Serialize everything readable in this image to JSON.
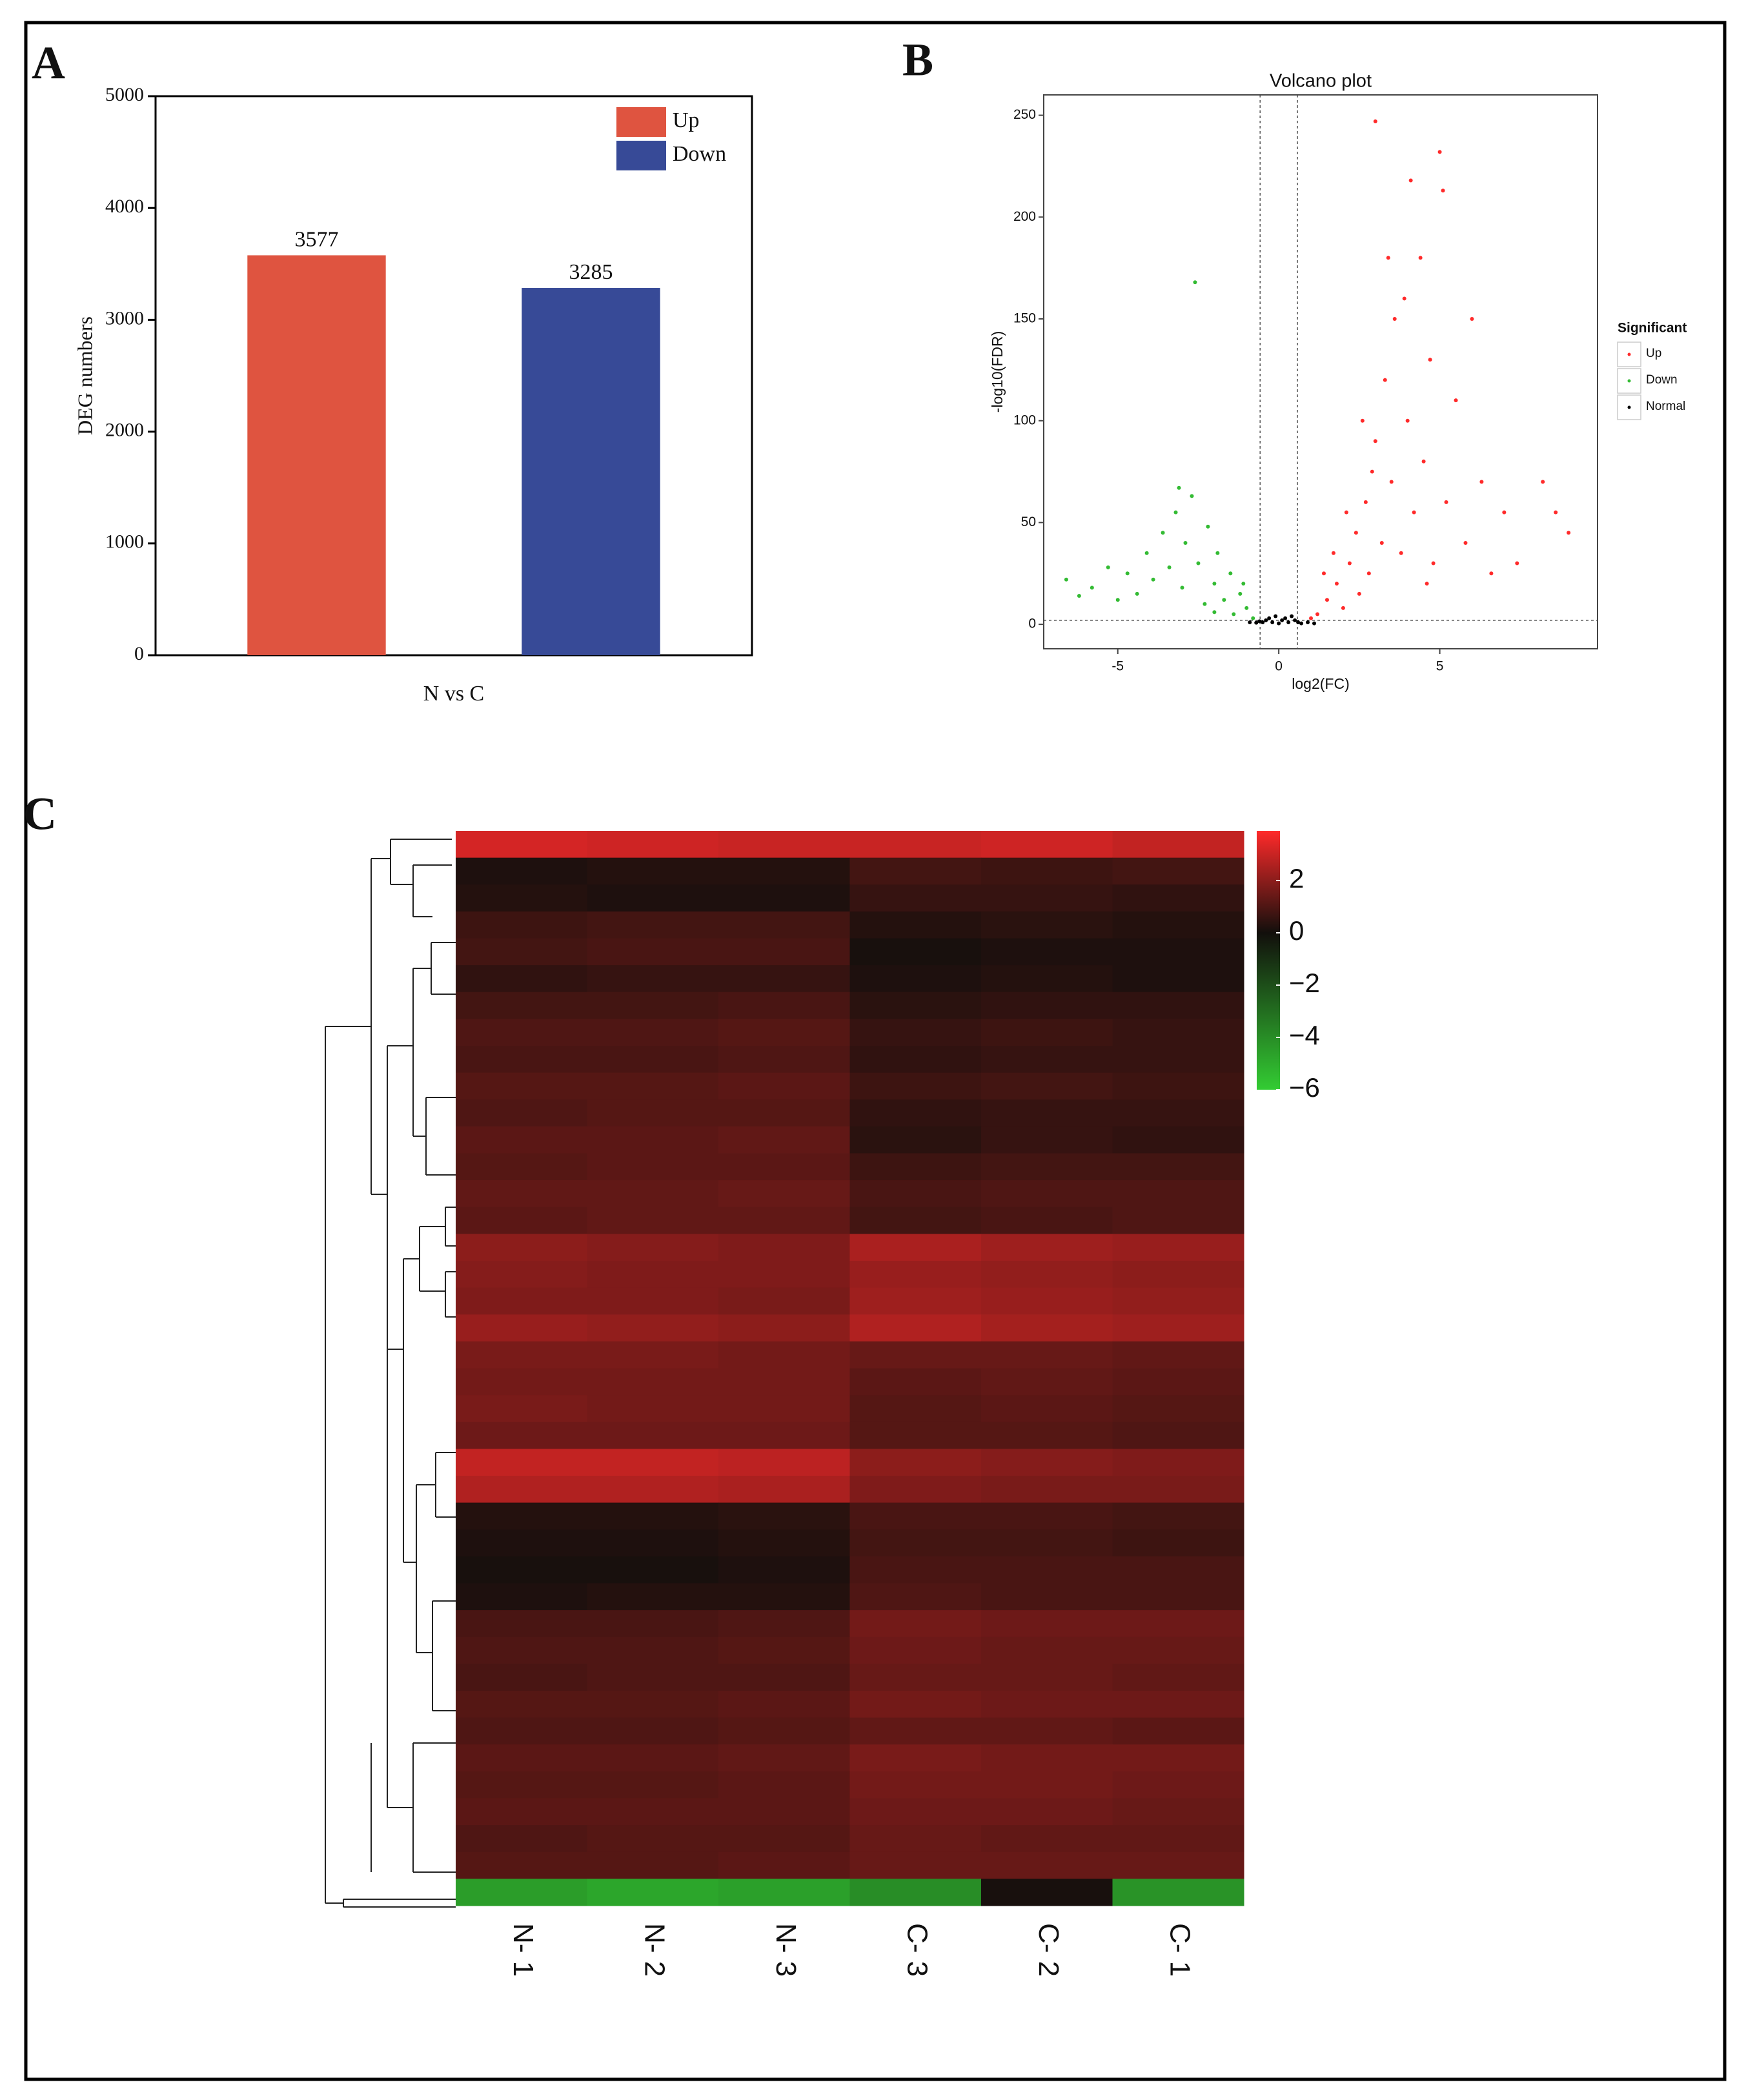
{
  "chart_data": [
    {
      "type": "bar",
      "panel": "A",
      "ylabel": "DEG numbers",
      "categories": [
        "N vs C"
      ],
      "series": [
        {
          "name": "Up",
          "color": "#df5440",
          "values": [
            3577
          ]
        },
        {
          "name": "Down",
          "color": "#374a97",
          "values": [
            3285
          ]
        }
      ],
      "ylim": [
        0,
        5000
      ],
      "yticks": [
        0,
        1000,
        2000,
        3000,
        4000,
        5000
      ],
      "legend": "upper right"
    },
    {
      "type": "scatter",
      "panel": "B",
      "title": "Volcano plot",
      "xlabel": "log2(FC)",
      "ylabel": "-log10(FDR)",
      "legend_title": "Significant",
      "legend": "right",
      "series": [
        {
          "name": "Up",
          "color": "#ff2a2a",
          "x": [
            1.2,
            1.5,
            1.8,
            2.0,
            2.2,
            2.4,
            2.5,
            2.7,
            2.8,
            3.0,
            3.0,
            3.2,
            3.3,
            3.5,
            3.6,
            3.8,
            4.0,
            4.1,
            4.2,
            4.4,
            4.5,
            4.7,
            4.8,
            5.0,
            5.1,
            5.2,
            5.5,
            5.8,
            6.0,
            6.3,
            6.6,
            7.0,
            7.4,
            8.2,
            8.6,
            9.0,
            1.0,
            1.4,
            2.1,
            2.6,
            3.4,
            3.9,
            1.7,
            2.9,
            4.6
          ],
          "values": [
            5,
            12,
            20,
            8,
            30,
            45,
            15,
            60,
            25,
            90,
            247,
            40,
            120,
            70,
            150,
            35,
            100,
            218,
            55,
            180,
            80,
            130,
            30,
            232,
            213,
            60,
            110,
            40,
            150,
            70,
            25,
            55,
            30,
            70,
            55,
            45,
            3,
            25,
            55,
            100,
            180,
            160,
            35,
            75,
            20
          ]
        },
        {
          "name": "Down",
          "color": "#33bb33",
          "x": [
            -0.8,
            -1.0,
            -1.2,
            -1.4,
            -1.5,
            -1.7,
            -1.9,
            -2.0,
            -2.2,
            -2.3,
            -2.5,
            -2.6,
            -2.7,
            -2.9,
            -3.0,
            -3.2,
            -3.4,
            -3.6,
            -3.9,
            -4.1,
            -4.4,
            -4.7,
            -5.0,
            -5.3,
            -5.8,
            -6.2,
            -6.6,
            -3.1,
            -1.1,
            -2.0
          ],
          "values": [
            3,
            8,
            15,
            5,
            25,
            12,
            35,
            20,
            48,
            10,
            30,
            168,
            63,
            40,
            18,
            55,
            28,
            45,
            22,
            35,
            15,
            25,
            12,
            28,
            18,
            14,
            22,
            67,
            20,
            6
          ]
        },
        {
          "name": "Normal",
          "color": "#000000",
          "x": [
            -0.5,
            -0.4,
            -0.3,
            -0.2,
            -0.1,
            0,
            0.1,
            0.2,
            0.3,
            0.4,
            0.5,
            -0.6,
            0.6,
            0.7,
            -0.7,
            0.9,
            1.1,
            -0.9
          ],
          "values": [
            1,
            2,
            3,
            1,
            4,
            0.5,
            2,
            3,
            1,
            4,
            2,
            1.5,
            1,
            0.5,
            0.8,
            1,
            0.5,
            1
          ]
        }
      ],
      "xlim": [
        -7.3,
        9.9
      ],
      "xticks": [
        -5,
        0,
        5
      ],
      "ylim": [
        -12,
        260
      ],
      "yticks": [
        0,
        50,
        100,
        150,
        200,
        250
      ],
      "vlines": [
        -0.58,
        0.58
      ],
      "hline": 2
    },
    {
      "type": "heatmap",
      "panel": "C",
      "columns": [
        "N- 1",
        "N- 2",
        "N- 3",
        "C- 3",
        "C- 2",
        "C- 1"
      ],
      "rows": [
        [
          3.2,
          3.1,
          3.0,
          3.0,
          3.1,
          2.9
        ],
        [
          0.2,
          0.3,
          0.3,
          0.8,
          0.7,
          0.8
        ],
        [
          0.3,
          0.2,
          0.2,
          0.6,
          0.6,
          0.5
        ],
        [
          0.7,
          0.8,
          0.8,
          0.3,
          0.4,
          0.3
        ],
        [
          0.8,
          0.9,
          0.9,
          0.1,
          0.2,
          0.2
        ],
        [
          0.5,
          0.6,
          0.6,
          0.2,
          0.3,
          0.2
        ],
        [
          0.8,
          0.8,
          0.9,
          0.4,
          0.5,
          0.5
        ],
        [
          1.0,
          1.0,
          1.1,
          0.6,
          0.7,
          0.6
        ],
        [
          0.9,
          0.9,
          1.0,
          0.5,
          0.6,
          0.6
        ],
        [
          1.1,
          1.1,
          1.2,
          0.7,
          0.8,
          0.7
        ],
        [
          1.0,
          1.1,
          1.1,
          0.5,
          0.6,
          0.6
        ],
        [
          1.2,
          1.2,
          1.3,
          0.4,
          0.6,
          0.5
        ],
        [
          1.1,
          1.2,
          1.2,
          0.7,
          0.8,
          0.8
        ],
        [
          1.3,
          1.3,
          1.4,
          0.9,
          1.0,
          1.0
        ],
        [
          1.2,
          1.3,
          1.3,
          0.8,
          0.9,
          1.0
        ],
        [
          2.0,
          1.9,
          1.8,
          2.5,
          2.3,
          2.2
        ],
        [
          1.9,
          1.8,
          1.8,
          2.2,
          2.1,
          2.0
        ],
        [
          1.8,
          1.8,
          1.7,
          2.3,
          2.2,
          2.1
        ],
        [
          2.2,
          2.1,
          2.0,
          2.6,
          2.4,
          2.3
        ],
        [
          1.7,
          1.7,
          1.6,
          1.4,
          1.4,
          1.3
        ],
        [
          1.6,
          1.6,
          1.6,
          1.2,
          1.3,
          1.2
        ],
        [
          1.7,
          1.6,
          1.6,
          1.1,
          1.2,
          1.1
        ],
        [
          1.5,
          1.5,
          1.5,
          1.1,
          1.1,
          1.0
        ],
        [
          2.9,
          2.9,
          2.8,
          2.0,
          1.9,
          1.8
        ],
        [
          2.6,
          2.6,
          2.5,
          1.8,
          1.7,
          1.7
        ],
        [
          0.3,
          0.3,
          0.4,
          0.9,
          0.9,
          0.8
        ],
        [
          0.2,
          0.2,
          0.3,
          0.8,
          0.8,
          0.7
        ],
        [
          0.1,
          0.1,
          0.2,
          0.9,
          0.9,
          0.9
        ],
        [
          0.2,
          0.3,
          0.3,
          1.0,
          0.9,
          0.9
        ],
        [
          0.9,
          0.9,
          1.0,
          1.6,
          1.5,
          1.5
        ],
        [
          1.0,
          1.0,
          1.1,
          1.5,
          1.4,
          1.4
        ],
        [
          0.9,
          1.0,
          1.0,
          1.4,
          1.4,
          1.3
        ],
        [
          1.1,
          1.1,
          1.2,
          1.6,
          1.5,
          1.5
        ],
        [
          1.0,
          1.0,
          1.1,
          1.3,
          1.3,
          1.2
        ],
        [
          1.2,
          1.2,
          1.3,
          1.7,
          1.6,
          1.6
        ],
        [
          1.1,
          1.1,
          1.2,
          1.6,
          1.6,
          1.5
        ],
        [
          1.2,
          1.2,
          1.2,
          1.5,
          1.5,
          1.4
        ],
        [
          1.0,
          1.1,
          1.1,
          1.4,
          1.3,
          1.3
        ],
        [
          1.1,
          1.1,
          1.2,
          1.4,
          1.4,
          1.4
        ],
        [
          -4.5,
          -4.8,
          -4.6,
          -4.0,
          0.1,
          -4.2
        ]
      ],
      "zlim": [
        -6,
        3.9
      ],
      "zticks": [
        2,
        0,
        {
          "value": -2,
          "label": "−2"
        },
        {
          "value": -4,
          "label": "−4"
        },
        {
          "value": -6,
          "label": "−6"
        }
      ],
      "colors": [
        "#33cc33",
        "#120f0c",
        "#ff2a2a"
      ]
    }
  ]
}
